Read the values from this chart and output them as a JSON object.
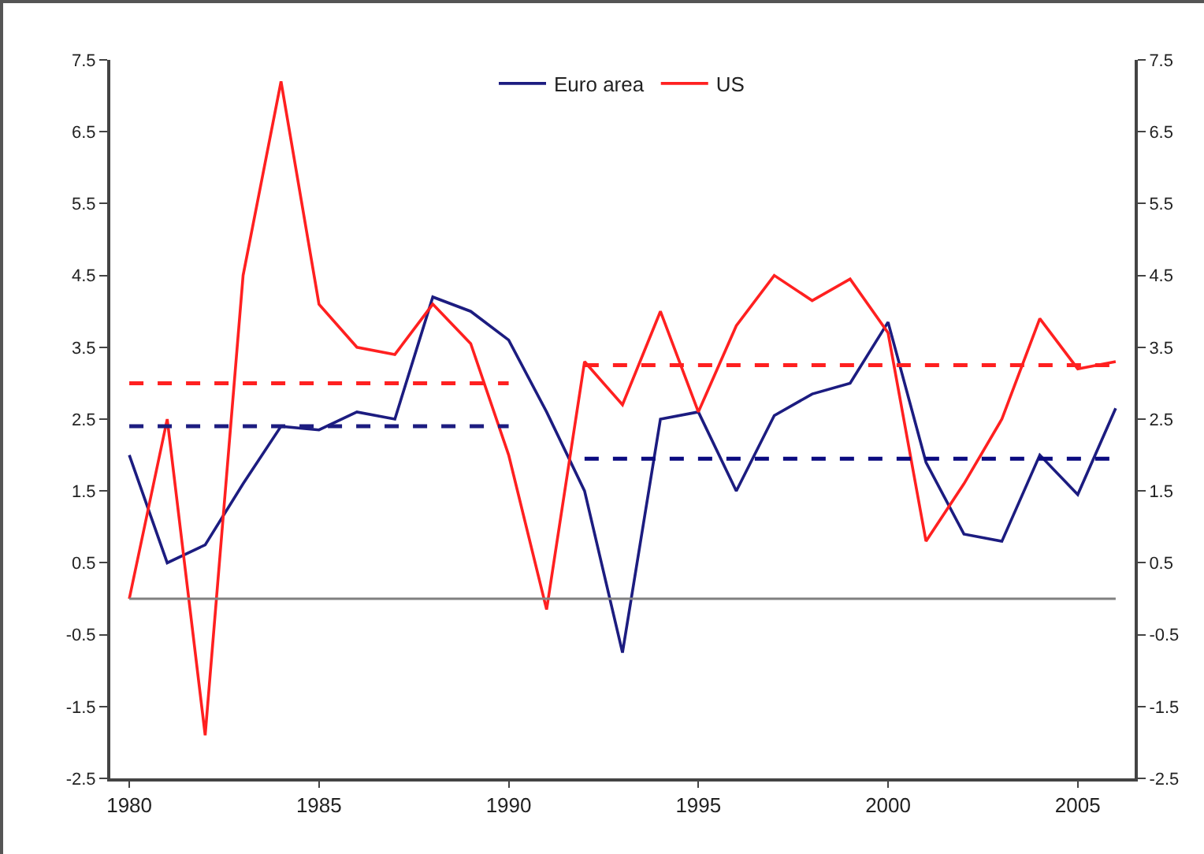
{
  "chart_data": {
    "type": "line",
    "x": [
      1980,
      1981,
      1982,
      1983,
      1984,
      1985,
      1986,
      1987,
      1988,
      1989,
      1990,
      1991,
      1992,
      1993,
      1994,
      1995,
      1996,
      1997,
      1998,
      1999,
      2000,
      2001,
      2002,
      2003,
      2004,
      2005,
      2006
    ],
    "series": [
      {
        "name": "Euro area",
        "color": "#1c1c80",
        "values": [
          2.0,
          0.5,
          0.75,
          1.6,
          2.4,
          2.35,
          2.6,
          2.5,
          4.2,
          4.0,
          3.6,
          2.6,
          1.5,
          -0.75,
          2.5,
          2.6,
          1.5,
          2.55,
          2.85,
          3.0,
          3.85,
          1.9,
          0.9,
          0.8,
          2.0,
          1.45,
          2.65
        ]
      },
      {
        "name": "US",
        "color": "#ff2020",
        "values": [
          0.0,
          2.5,
          -1.9,
          4.5,
          7.2,
          4.1,
          3.5,
          3.4,
          4.1,
          3.55,
          2.0,
          -0.15,
          3.3,
          2.7,
          4.0,
          2.6,
          3.8,
          4.5,
          4.15,
          4.45,
          3.7,
          0.8,
          1.6,
          2.5,
          3.9,
          3.2,
          3.3
        ]
      },
      {
        "type": "line",
        "line_style": "dashed",
        "color": "#ff2020",
        "x": [
          1980,
          1990
        ],
        "values": [
          3.0,
          3.0
        ]
      },
      {
        "type": "line",
        "line_style": "dashed",
        "color": "#1c1c80",
        "x": [
          1980,
          1990
        ],
        "values": [
          2.4,
          2.4
        ]
      },
      {
        "type": "line",
        "line_style": "dashed",
        "color": "#ff2020",
        "x": [
          1992,
          2006
        ],
        "values": [
          3.25,
          3.25
        ]
      },
      {
        "type": "line",
        "line_style": "dashed",
        "color": "#0a0a80",
        "x": [
          1992,
          2006
        ],
        "values": [
          1.95,
          1.95
        ]
      }
    ],
    "ref_lines": [
      {
        "axis": "y",
        "value": 0,
        "color": "#808080"
      }
    ],
    "xlim": [
      1979.5,
      2006.5
    ],
    "xticks": [
      1980,
      1985,
      1990,
      1995,
      2000,
      2005
    ],
    "ylim": [
      -2.5,
      7.5
    ],
    "yticks": [
      -2.5,
      -1.5,
      -0.5,
      0.5,
      1.5,
      2.5,
      3.5,
      4.5,
      5.5,
      6.5,
      7.5
    ],
    "y2lim": [
      -2.5,
      7.5
    ],
    "y2ticks": [
      -2.5,
      -1.5,
      -0.5,
      0.5,
      1.5,
      2.5,
      3.5,
      4.5,
      5.5,
      6.5,
      7.5
    ],
    "grid": false,
    "legend": "top",
    "line_style": "solid",
    "marker": "none"
  }
}
